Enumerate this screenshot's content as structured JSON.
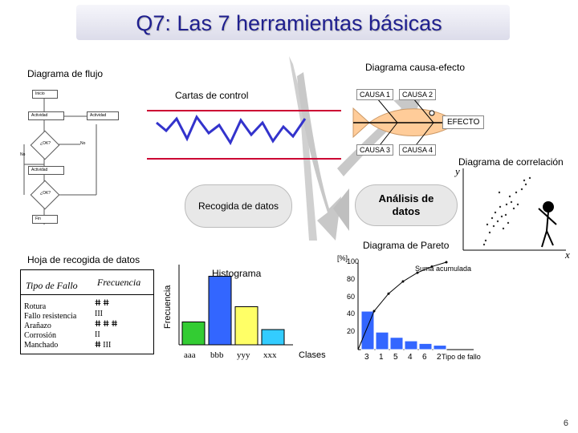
{
  "slide": {
    "title": "Q7: Las 7 herramientas básicas",
    "page_number": "6"
  },
  "flowchart": {
    "label": "Diagrama de flujo",
    "nodes": [
      "Inicio",
      "Actividad",
      "Actividad",
      "¿OK?",
      "Actividad",
      "¿OK?",
      "Fin"
    ],
    "no_label": "No"
  },
  "control_charts": {
    "label": "Cartas de control"
  },
  "cause_effect": {
    "label": "Diagrama causa-efecto",
    "causes": [
      "CAUSA 1",
      "CAUSA 2",
      "CAUSA 3",
      "CAUSA 4"
    ],
    "effect": "EFECTO"
  },
  "center": {
    "left": "Recogida de datos",
    "right": "Análisis de datos"
  },
  "correlation": {
    "label": "Diagrama de correlación",
    "y_label": "y",
    "x_label": "x"
  },
  "check_sheet": {
    "label": "Hoja de recogida de datos",
    "header_type": "Tipo de Fallo",
    "header_freq": "Frecuencia",
    "rows": [
      {
        "type": "Rotura",
        "tally": "ⵌ ⵌ"
      },
      {
        "type": "Fallo resistencia",
        "tally": "III"
      },
      {
        "type": "Arañazo",
        "tally": "ⵌ ⵌ ⵌ"
      },
      {
        "type": "Corrosión",
        "tally": "II"
      },
      {
        "type": "Manchado",
        "tally": "ⵌ III"
      }
    ]
  },
  "histogram": {
    "label": "Histograma",
    "ylabel": "Frecuencia",
    "categories": [
      "aaa",
      "bbb",
      "yyy",
      "xxx"
    ],
    "values": [
      3,
      9,
      5,
      2
    ],
    "xlabel": "Clases"
  },
  "pareto": {
    "label": "Diagrama de Pareto",
    "unit": "[%]",
    "ticks": [
      "100",
      "80",
      "60",
      "40",
      "20"
    ],
    "categories": [
      "3",
      "1",
      "5",
      "4",
      "6",
      "2"
    ],
    "values": [
      44,
      20,
      14,
      10,
      7,
      5
    ],
    "cumulative_label": "Suma acumulada",
    "xlabel": "Tipo de fallo"
  },
  "chart_data": [
    {
      "type": "bar",
      "title": "Histograma",
      "categories": [
        "aaa",
        "bbb",
        "yyy",
        "xxx"
      ],
      "values": [
        3,
        9,
        5,
        2
      ],
      "xlabel": "Clases",
      "ylabel": "Frecuencia"
    },
    {
      "type": "bar",
      "title": "Diagrama de Pareto",
      "categories": [
        "3",
        "1",
        "5",
        "4",
        "6",
        "2"
      ],
      "values": [
        44,
        20,
        14,
        10,
        7,
        5
      ],
      "cumulative": [
        44,
        64,
        78,
        88,
        95,
        100
      ],
      "xlabel": "Tipo de fallo",
      "ylabel": "[%]",
      "ylim": [
        0,
        100
      ]
    }
  ],
  "colors": {
    "title": "#1f1f8f",
    "bar_blue": "#3366ff",
    "bar_green": "#33cc33",
    "bar_yellow": "#ffff66",
    "bar_cyan": "#33ccff",
    "control_line": "#3333cc",
    "control_limit": "#cc0033",
    "fish": "#ffcc99"
  }
}
